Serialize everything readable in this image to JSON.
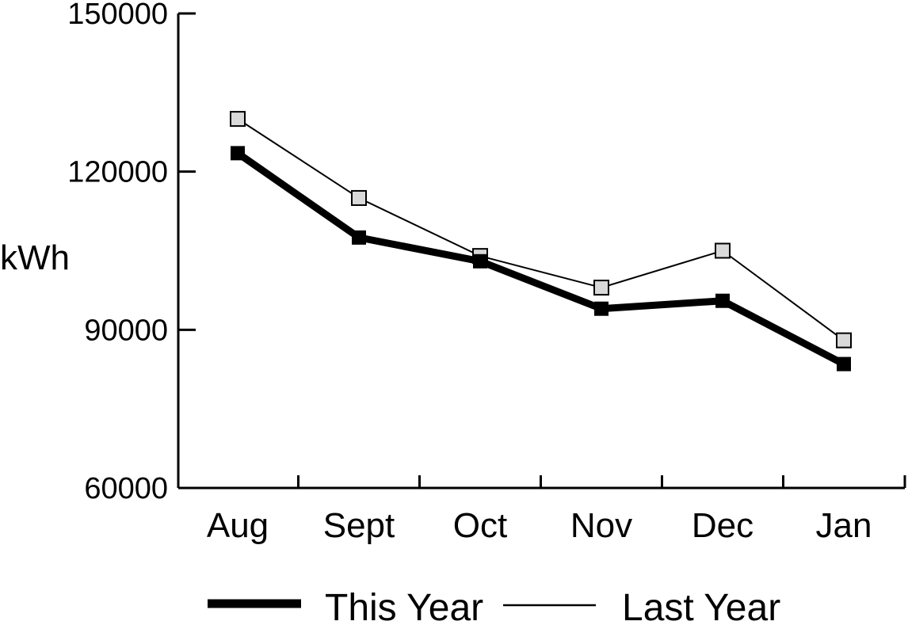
{
  "chart_data": {
    "type": "line",
    "title": "",
    "xlabel": "",
    "ylabel": "kWh",
    "categories": [
      "Aug",
      "Sept",
      "Oct",
      "Nov",
      "Dec",
      "Jan"
    ],
    "ylim": [
      60000,
      150000
    ],
    "yticks": [
      "150000",
      "120000",
      "90000",
      "60000"
    ],
    "grid": false,
    "legend_position": "bottom",
    "series": [
      {
        "name": "This Year",
        "values": [
          123500,
          107500,
          103000,
          94000,
          95500,
          83500
        ],
        "line_color": "#000000",
        "marker_fill": "#000000",
        "line_style": "thick"
      },
      {
        "name": "Last Year",
        "values": [
          130000,
          115000,
          104000,
          98000,
          105000,
          88000
        ],
        "line_color": "#000000",
        "marker_fill": "#d9d9d9",
        "line_style": "thin"
      }
    ]
  }
}
